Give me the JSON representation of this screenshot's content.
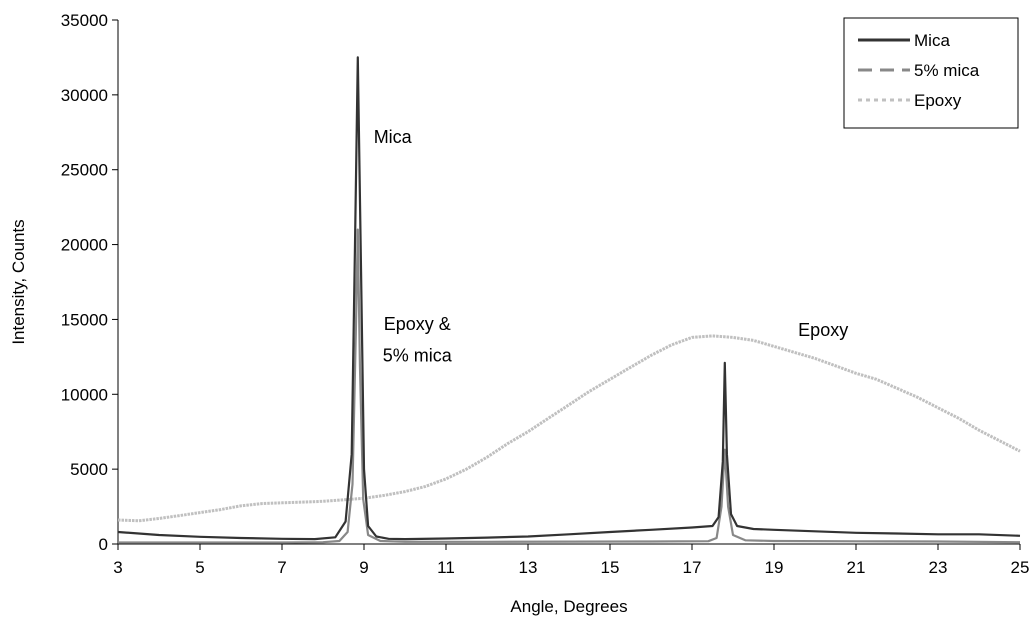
{
  "chart_data": {
    "type": "line",
    "xlabel": "Angle, Degrees",
    "ylabel": "Intensity, Counts",
    "xlim": [
      3,
      25
    ],
    "ylim": [
      0,
      35000
    ],
    "x_ticks": [
      3,
      5,
      7,
      9,
      11,
      13,
      15,
      17,
      19,
      21,
      23,
      25
    ],
    "y_ticks": [
      0,
      5000,
      10000,
      15000,
      20000,
      25000,
      30000,
      35000
    ],
    "grid": false,
    "legend_position": "top-right",
    "series": [
      {
        "name": "Mica",
        "color": "#333333",
        "style": "solid",
        "x": [
          3,
          4,
          5,
          6,
          7,
          7.8,
          8.3,
          8.55,
          8.7,
          8.78,
          8.85,
          8.93,
          9.0,
          9.1,
          9.3,
          9.6,
          10,
          11,
          12,
          13,
          14,
          15,
          16,
          17,
          17.5,
          17.65,
          17.75,
          17.8,
          17.85,
          17.95,
          18.1,
          18.5,
          19,
          20,
          21,
          22,
          23,
          24,
          25
        ],
        "values": [
          800,
          600,
          480,
          400,
          350,
          330,
          450,
          1500,
          6000,
          20000,
          32500,
          18000,
          5000,
          1200,
          500,
          350,
          330,
          370,
          430,
          500,
          650,
          800,
          950,
          1100,
          1200,
          1800,
          5500,
          12100,
          6000,
          2000,
          1200,
          1000,
          950,
          850,
          750,
          700,
          650,
          650,
          550
        ]
      },
      {
        "name": "5% mica",
        "color": "#888888",
        "style": "dashed",
        "x": [
          3,
          5,
          7,
          8,
          8.4,
          8.6,
          8.72,
          8.8,
          8.85,
          8.9,
          8.98,
          9.1,
          9.4,
          10,
          12,
          14,
          16,
          17.4,
          17.6,
          17.72,
          17.8,
          17.88,
          18.0,
          18.3,
          19,
          21,
          23,
          25
        ],
        "values": [
          100,
          100,
          100,
          120,
          200,
          800,
          4000,
          14000,
          21000,
          12000,
          3000,
          600,
          200,
          150,
          150,
          160,
          170,
          190,
          400,
          2500,
          6300,
          2500,
          600,
          250,
          200,
          180,
          170,
          120
        ]
      },
      {
        "name": "Epoxy",
        "color": "#c0c0c0",
        "style": "dotted",
        "x": [
          3,
          3.5,
          4,
          4.5,
          5,
          5.5,
          6,
          6.5,
          7,
          7.5,
          8,
          8.5,
          9,
          9.5,
          10,
          10.5,
          11,
          11.5,
          12,
          12.5,
          13,
          13.5,
          14,
          14.5,
          15,
          15.5,
          16,
          16.5,
          17,
          17.5,
          18,
          18.5,
          19,
          19.5,
          20,
          20.5,
          21,
          21.5,
          22,
          22.5,
          23,
          23.5,
          24,
          24.5,
          25
        ],
        "values": [
          1600,
          1550,
          1700,
          1900,
          2100,
          2300,
          2550,
          2700,
          2750,
          2800,
          2850,
          2950,
          3050,
          3250,
          3500,
          3850,
          4350,
          5000,
          5800,
          6700,
          7500,
          8400,
          9300,
          10200,
          11000,
          11800,
          12600,
          13300,
          13800,
          13900,
          13800,
          13600,
          13200,
          12800,
          12400,
          11900,
          11400,
          11000,
          10400,
          9800,
          9100,
          8400,
          7600,
          6900,
          6200
        ]
      }
    ],
    "annotations": [
      {
        "text": "Mica",
        "x": 9.7,
        "y": 26800
      },
      {
        "text": "Epoxy &",
        "x": 10.3,
        "y": 14300
      },
      {
        "text": "5% mica",
        "x": 10.3,
        "y": 12200
      },
      {
        "text": "Epoxy",
        "x": 20.2,
        "y": 13900
      }
    ]
  }
}
